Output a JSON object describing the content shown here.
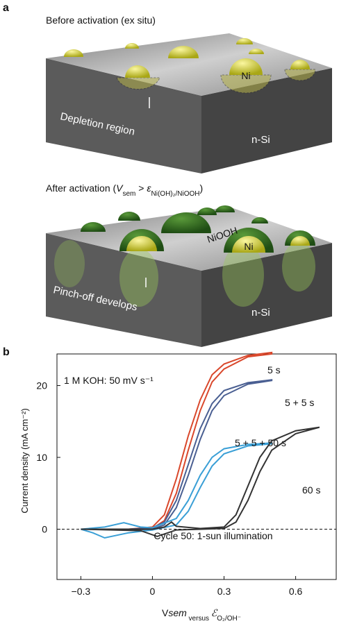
{
  "panel_a": {
    "label": "a",
    "before": {
      "title": "Before activation (ex situ)",
      "particle": "Ni",
      "depletion": "Depletion region",
      "substrate": "n-Si"
    },
    "after": {
      "title_parts": [
        "After activation (",
        "V",
        "sem",
        " > ",
        "ε",
        "Ni(OH)₂/NiOOH",
        ")"
      ],
      "shell": "NiOOH",
      "particle": "Ni",
      "pinch": "Pinch-off develops",
      "substrate": "n-Si"
    }
  },
  "chart_data": {
    "type": "line",
    "panel_label": "b",
    "y_label": "Current density (mA cm⁻²)",
    "x_label_parts": [
      "V",
      "sem",
      " versus ",
      "ℰ",
      "O₂/OH⁻"
    ],
    "annotations": [
      "1 M KOH: 50 mV s⁻¹",
      "Cycle 50: 1-sun illumination"
    ],
    "xlim": [
      -0.4,
      0.77
    ],
    "ylim": [
      -7,
      24.4
    ],
    "xticks": [
      {
        "value": -0.3,
        "label": "−0.3"
      },
      0,
      0.3,
      0.6
    ],
    "yticks": [
      0,
      10,
      20
    ],
    "series": [
      {
        "name": "5 s",
        "color": "#d9472b",
        "x": [
          -0.3,
          -0.1,
          0,
          0.05,
          0.1,
          0.15,
          0.2,
          0.25,
          0.3,
          0.4,
          0.5,
          0.5,
          0.4,
          0.3,
          0.25,
          0.2,
          0.15,
          0.1,
          0.05,
          0,
          -0.1,
          -0.3
        ],
        "values": [
          0,
          0,
          0.3,
          2,
          7,
          13,
          18,
          21.5,
          23,
          24.2,
          24.6,
          24.4,
          24,
          22.3,
          20.5,
          16.5,
          11,
          5,
          1.2,
          0.1,
          0,
          0
        ]
      },
      {
        "name": "5 + 5 s",
        "color": "#4a5f92",
        "x": [
          -0.3,
          -0.1,
          0,
          0.05,
          0.1,
          0.15,
          0.2,
          0.25,
          0.3,
          0.4,
          0.5,
          0.5,
          0.4,
          0.3,
          0.25,
          0.2,
          0.15,
          0.1,
          0.05,
          0,
          -0.1,
          -0.3
        ],
        "values": [
          0,
          0,
          0.2,
          1,
          4,
          9,
          14,
          17.5,
          19.3,
          20.4,
          20.8,
          20.7,
          20.2,
          18.6,
          16.5,
          12.5,
          7.5,
          3,
          0.6,
          0,
          -0.1,
          0
        ]
      },
      {
        "name": "5 + 5 + 50 s",
        "color": "#3a9fd6",
        "x": [
          -0.3,
          -0.2,
          -0.12,
          -0.05,
          0,
          0.1,
          0.15,
          0.2,
          0.25,
          0.3,
          0.4,
          0.5,
          0.5,
          0.4,
          0.3,
          0.25,
          0.2,
          0.15,
          0.1,
          0,
          -0.1,
          -0.2,
          -0.25,
          -0.3
        ],
        "values": [
          0,
          0.3,
          0.9,
          0.3,
          0.2,
          1.5,
          4,
          7.5,
          10,
          11.2,
          11.8,
          12,
          11.9,
          11.6,
          10.5,
          8.8,
          5.8,
          2.5,
          0.6,
          -0.1,
          -0.5,
          -1.2,
          -0.5,
          0
        ]
      },
      {
        "name": "60 s",
        "color": "#333333",
        "x": [
          -0.3,
          0,
          0.05,
          0.08,
          0.1,
          0.2,
          0.3,
          0.35,
          0.4,
          0.45,
          0.5,
          0.6,
          0.7,
          0.7,
          0.6,
          0.5,
          0.45,
          0.4,
          0.35,
          0.3,
          0.1,
          0.02,
          -0.05,
          -0.3
        ],
        "values": [
          0,
          0,
          0.3,
          1,
          0.4,
          0.1,
          0.3,
          2,
          6,
          10,
          12.3,
          13.7,
          14.2,
          14.2,
          13.3,
          11,
          8,
          4,
          1,
          0.1,
          -0.1,
          -1,
          -0.2,
          0
        ]
      }
    ]
  }
}
